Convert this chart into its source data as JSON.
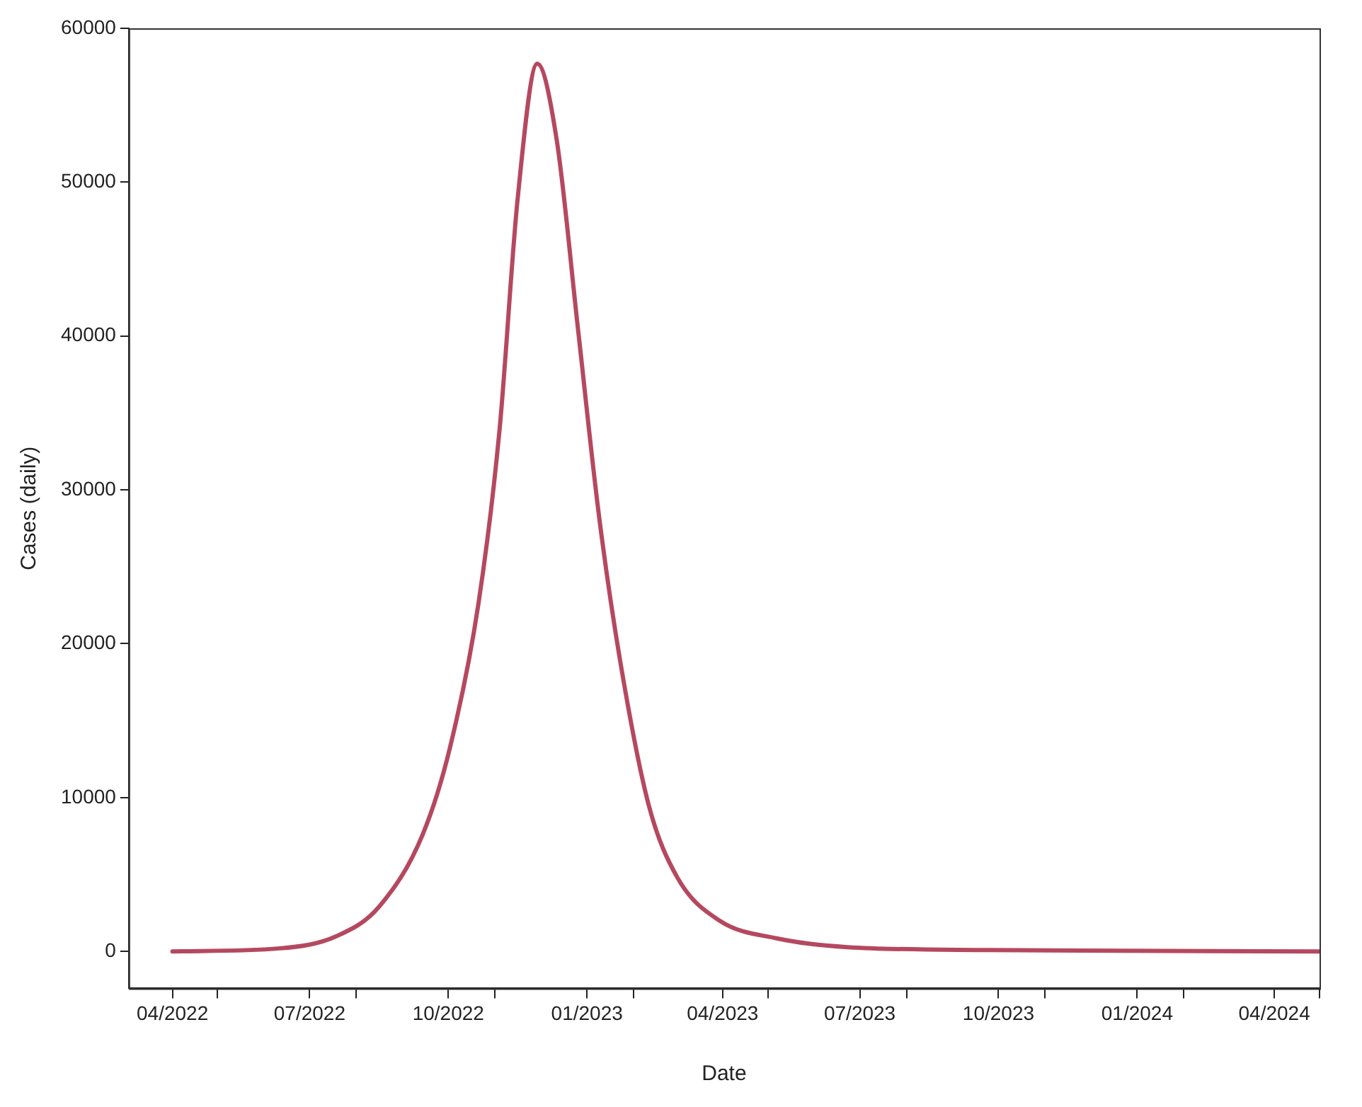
{
  "chart_data": {
    "type": "line",
    "xlabel": "Date",
    "ylabel": "Cases (daily)",
    "x": [
      "2022-04-01",
      "2022-06-11",
      "2022-07-19",
      "2022-08-16",
      "2022-09-14",
      "2022-10-02",
      "2022-10-21",
      "2022-11-04",
      "2022-11-16",
      "2022-11-29",
      "2022-12-12",
      "2022-12-26",
      "2023-01-09",
      "2023-01-23",
      "2023-02-11",
      "2023-03-02",
      "2023-03-30",
      "2023-05-07",
      "2023-06-23",
      "2023-09-25",
      "2024-05-01"
    ],
    "series": [
      {
        "color": "#b5485f",
        "values": [
          0,
          200,
          1000,
          2900,
          7600,
          13200,
          22600,
          33900,
          48900,
          57700,
          52700,
          40500,
          28300,
          18900,
          9500,
          4800,
          2000,
          850,
          280,
          90,
          0
        ]
      }
    ],
    "xlim": [
      "2022-03-03",
      "2024-05-01"
    ],
    "xticks": [
      {
        "value": "2022-04-01",
        "label": "04/2022"
      },
      {
        "value": "2022-05-01",
        "label": null
      },
      {
        "value": "2022-07-01",
        "label": "07/2022"
      },
      {
        "value": "2022-08-01",
        "label": null
      },
      {
        "value": "2022-10-01",
        "label": "10/2022"
      },
      {
        "value": "2022-11-01",
        "label": null
      },
      {
        "value": "2023-01-01",
        "label": "01/2023"
      },
      {
        "value": "2023-02-01",
        "label": null
      },
      {
        "value": "2023-04-01",
        "label": "04/2023"
      },
      {
        "value": "2023-05-01",
        "label": null
      },
      {
        "value": "2023-07-01",
        "label": "07/2023"
      },
      {
        "value": "2023-08-01",
        "label": null
      },
      {
        "value": "2023-10-01",
        "label": "10/2023"
      },
      {
        "value": "2023-11-01",
        "label": null
      },
      {
        "value": "2024-01-01",
        "label": "01/2024"
      },
      {
        "value": "2024-02-01",
        "label": null
      },
      {
        "value": "2024-04-01",
        "label": "04/2024"
      },
      {
        "value": "2024-05-01",
        "label": null
      }
    ],
    "ylim": [
      -2400,
      60000
    ],
    "yticks": [
      0,
      10000,
      20000,
      30000,
      40000,
      50000,
      60000
    ],
    "grid": false,
    "legend": false,
    "marker": "none",
    "line_style": "solid"
  }
}
